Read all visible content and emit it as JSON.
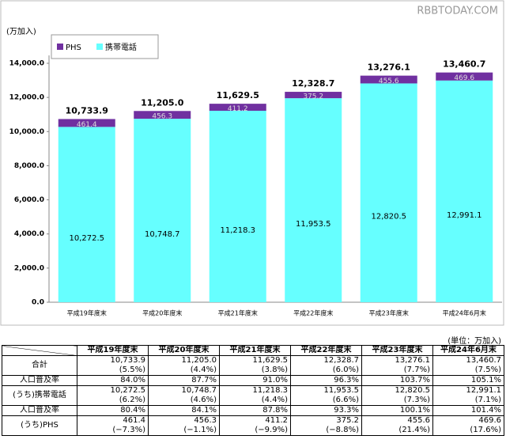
{
  "watermark": "RBBTODAY.COM",
  "chart_data": {
    "type": "stacked-bar",
    "y_label": "(万加入)",
    "categories": [
      "平成19年度末",
      "平成20年度末",
      "平成21年度末",
      "平成22年度末",
      "平成23年度末",
      "平成24年6月末"
    ],
    "series": [
      {
        "name": "携帯電話",
        "color": "#66ffff",
        "values": [
          10272.5,
          10748.7,
          11218.3,
          11953.5,
          12820.5,
          12991.1
        ],
        "value_labels": [
          "10,272.5",
          "10,748.7",
          "11,218.3",
          "11,953.5",
          "12,820.5",
          "12,991.1"
        ]
      },
      {
        "name": "PHS",
        "color": "#7030a0",
        "values": [
          461.4,
          456.3,
          411.2,
          375.2,
          455.6,
          469.6
        ]
      }
    ],
    "totals": {
      "values": [
        10733.9,
        11205.0,
        11629.5,
        12328.7,
        13276.1,
        13460.7
      ],
      "value_labels": [
        "10,733.9",
        "11,205.0",
        "11,629.5",
        "12,328.7",
        "13,276.1",
        "13,460.7"
      ]
    },
    "ylim": [
      0,
      14000
    ],
    "yticks": [
      {
        "value": 0,
        "label": "0.0"
      },
      {
        "value": 2000,
        "label": "2,000.0"
      },
      {
        "value": 4000,
        "label": "4,000.0"
      },
      {
        "value": 6000,
        "label": "6,000.0"
      },
      {
        "value": 8000,
        "label": "8,000.0"
      },
      {
        "value": 10000,
        "label": "10,000.0"
      },
      {
        "value": 12000,
        "label": "12,000.0"
      },
      {
        "value": 14000,
        "label": "14,000.0"
      }
    ],
    "legend": "top-left"
  },
  "table": {
    "unit": "(単位：万加入)",
    "columns": [
      "平成19年度末",
      "平成20年度末",
      "平成21年度末",
      "平成22年度末",
      "平成23年度末",
      "平成24年6月末"
    ],
    "rows": [
      {
        "label": "合計",
        "values": [
          "10,733.9",
          "11,205.0",
          "11,629.5",
          "12,328.7",
          "13,276.1",
          "13,460.7"
        ],
        "changes": [
          "(5.5%)",
          "(4.4%)",
          "(3.8%)",
          "(6.0%)",
          "(7.7%)",
          "(7.5%)"
        ]
      },
      {
        "label": "人口普及率",
        "values": [
          "84.0%",
          "87.7%",
          "91.0%",
          "96.3%",
          "103.7%",
          "105.1%"
        ]
      },
      {
        "label": "(うち)携帯電話",
        "values": [
          "10,272.5",
          "10,748.7",
          "11,218.3",
          "11,953.5",
          "12,820.5",
          "12,991.1"
        ],
        "changes": [
          "(6.2%)",
          "(4.6%)",
          "(4.4%)",
          "(6.6%)",
          "(7.3%)",
          "(7.1%)"
        ]
      },
      {
        "label": "人口普及率",
        "values": [
          "80.4%",
          "84.1%",
          "87.8%",
          "93.3%",
          "100.1%",
          "101.4%"
        ]
      },
      {
        "label": "(うち)PHS",
        "values": [
          "461.4",
          "456.3",
          "411.2",
          "375.2",
          "455.6",
          "469.6"
        ],
        "changes": [
          "(−7.3%)",
          "(−1.1%)",
          "(−9.9%)",
          "(−8.8%)",
          "(21.4%)",
          "(17.6%)"
        ]
      }
    ]
  }
}
